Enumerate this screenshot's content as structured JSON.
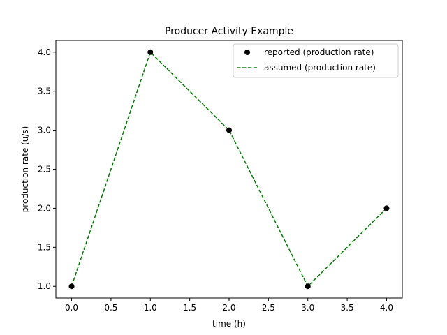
{
  "chart_data": {
    "type": "line",
    "title": "Producer Activity Example",
    "xlabel": "time (h)",
    "ylabel": "production rate (u/s)",
    "xlim": [
      -0.2,
      4.2
    ],
    "ylim": [
      0.85,
      4.15
    ],
    "xticks": [
      0.0,
      0.5,
      1.0,
      1.5,
      2.0,
      2.5,
      3.0,
      3.5,
      4.0
    ],
    "xtick_labels": [
      "0.0",
      "0.5",
      "1.0",
      "1.5",
      "2.0",
      "2.5",
      "3.0",
      "3.5",
      "4.0"
    ],
    "yticks": [
      1.0,
      1.5,
      2.0,
      2.5,
      3.0,
      3.5,
      4.0
    ],
    "ytick_labels": [
      "1.0",
      "1.5",
      "2.0",
      "2.5",
      "3.0",
      "3.5",
      "4.0"
    ],
    "grid": false,
    "legend_position": "top-right",
    "series": [
      {
        "name": "reported (production rate)",
        "style": "markers",
        "color": "#000000",
        "x": [
          0,
          1,
          2,
          3,
          4
        ],
        "y": [
          1,
          4,
          3,
          1,
          2
        ]
      },
      {
        "name": "assumed (production rate)",
        "style": "dashed-line",
        "color": "#008000",
        "x": [
          0,
          1,
          2,
          3,
          4
        ],
        "y": [
          1,
          4,
          3,
          1,
          2
        ]
      }
    ]
  }
}
